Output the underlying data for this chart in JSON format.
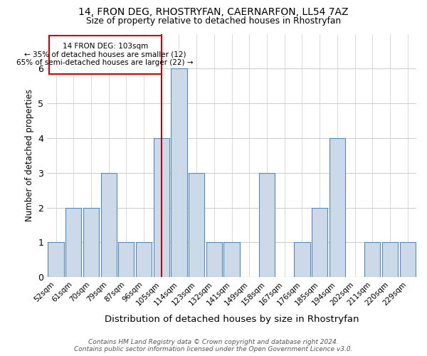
{
  "title1": "14, FRON DEG, RHOSTRYFAN, CAERNARFON, LL54 7AZ",
  "title2": "Size of property relative to detached houses in Rhostryfan",
  "xlabel": "Distribution of detached houses by size in Rhostryfan",
  "ylabel": "Number of detached properties",
  "categories": [
    "52sqm",
    "61sqm",
    "70sqm",
    "79sqm",
    "87sqm",
    "96sqm",
    "105sqm",
    "114sqm",
    "123sqm",
    "132sqm",
    "141sqm",
    "149sqm",
    "158sqm",
    "167sqm",
    "176sqm",
    "185sqm",
    "194sqm",
    "202sqm",
    "211sqm",
    "220sqm",
    "229sqm"
  ],
  "values": [
    1,
    2,
    2,
    3,
    1,
    1,
    4,
    6,
    3,
    1,
    1,
    0,
    3,
    0,
    1,
    2,
    4,
    0,
    1,
    1,
    1
  ],
  "bar_color": "#ccd9e8",
  "bar_edge_color": "#5588bb",
  "highlight_index": 6,
  "highlight_line_color": "#cc0000",
  "annotation_text": "14 FRON DEG: 103sqm\n← 35% of detached houses are smaller (12)\n65% of semi-detached houses are larger (22) →",
  "annotation_box_color": "#ffffff",
  "annotation_box_edge": "#cc0000",
  "ylim": [
    0,
    7
  ],
  "yticks": [
    0,
    1,
    2,
    3,
    4,
    5,
    6,
    7
  ],
  "grid_color": "#cccccc",
  "background_color": "#ffffff",
  "footer": "Contains HM Land Registry data © Crown copyright and database right 2024.\nContains public sector information licensed under the Open Government Licence v3.0."
}
